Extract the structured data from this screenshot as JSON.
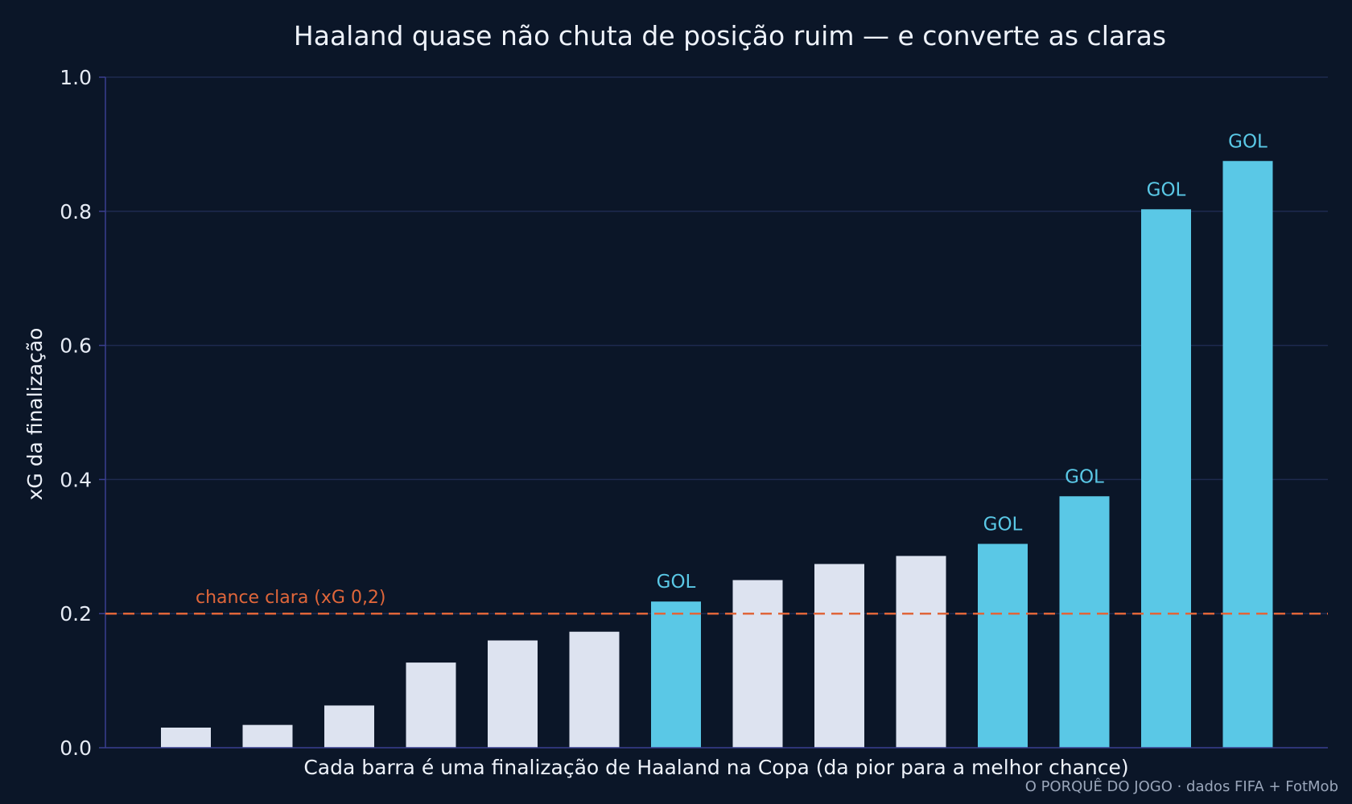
{
  "chart_data": {
    "type": "bar",
    "title": "Haaland quase não chuta de posição ruim — e converte as claras",
    "xlabel": "Cada barra é uma finalização de Haaland na Copa (da pior para a melhor chance)",
    "ylabel": "xG da finalização",
    "ylim": [
      0,
      1.0
    ],
    "yticks": [
      "0.0",
      "0.2",
      "0.4",
      "0.6",
      "0.8",
      "1.0"
    ],
    "grid": true,
    "values": [
      0.03,
      0.034,
      0.063,
      0.127,
      0.16,
      0.173,
      0.218,
      0.25,
      0.274,
      0.286,
      0.304,
      0.375,
      0.803,
      0.875
    ],
    "goal": [
      false,
      false,
      false,
      false,
      false,
      false,
      true,
      false,
      false,
      false,
      true,
      true,
      true,
      true
    ],
    "goal_label": "GOL",
    "reference_line": {
      "value": 0.2,
      "label": "chance clara (xG 0,2)",
      "color": "#e0663a"
    },
    "colors": {
      "goal": "#5ac8e6",
      "no_goal": "#dde3f0",
      "grid": "#1e2a4f",
      "axis": "#3a3f8f"
    }
  },
  "source": "O PORQUÊ DO JOGO · dados FIFA + FotMob"
}
